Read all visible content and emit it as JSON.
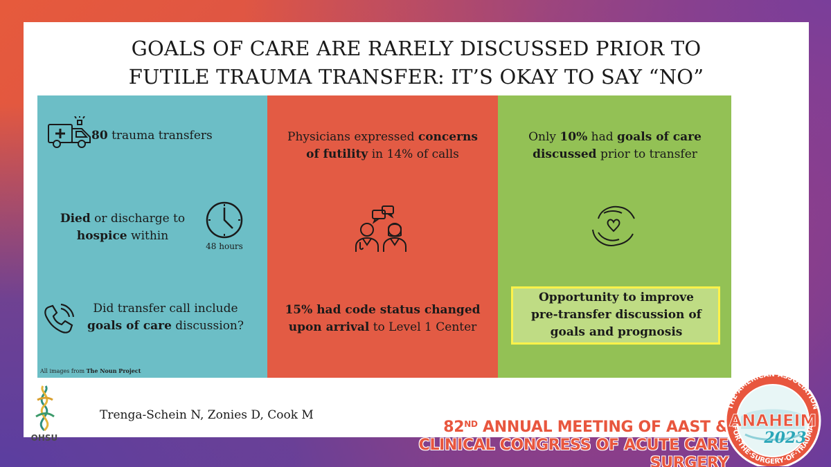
{
  "title": {
    "line1": "GOALS OF CARE ARE RARELY DISCUSSED PRIOR TO",
    "line2": "FUTILE TRAUMA TRANSFER: IT’S OKAY TO SAY “NO”"
  },
  "panel1": {
    "transfers_count": "80",
    "transfers_label": " trauma transfers",
    "died_bold": "Died",
    "died_rest": " or discharge to",
    "hospice_bold": "hospice",
    "hospice_rest": " within",
    "hours_label": "48 hours",
    "call_line1": "Did transfer call include",
    "call_goals_bold": "goals of care",
    "call_line2_rest": " discussion?",
    "credit_prefix": "All images from ",
    "credit_source": "The Noun Project"
  },
  "panel2": {
    "line1_plain": "Physicians expressed ",
    "line1_bold": "concerns",
    "line2_bold": "of futility",
    "line2_rest": " in 14% of calls",
    "code_pct": "15% had ",
    "code_bold1": "code status changed",
    "code_bold2": "upon arrival",
    "code_rest": " to Level 1 Center"
  },
  "panel3": {
    "line1_plain": "Only ",
    "line1_pct": "10%",
    "line1_mid": " had ",
    "line1_bold": "goals of care",
    "line2_bold": "discussed",
    "line2_rest": " prior to transfer",
    "opp_line1": "Opportunity to improve",
    "opp_line2": "pre-transfer discussion of",
    "opp_line3": "goals and prognosis"
  },
  "footer": {
    "authors": "Trenga-Schein N, Zonies D, Cook M",
    "ohsu": "OHSU",
    "meeting_num": "82",
    "meeting_sup": "ND",
    "meeting_line1_rest": " ANNUAL MEETING OF AAST &",
    "meeting_line2": "CLINICAL CONGRESS OF ACUTE CARE SURGERY"
  },
  "seal": {
    "ring_top": "THE·AMERICAN·ASSOCIATION",
    "ring_bottom": "FOR·THE·SURGERY·OF·TRAUMA",
    "city": "ANAHEIM",
    "year": "2023"
  },
  "icons": [
    "ambulance-icon",
    "clock-icon",
    "phone-icon",
    "doctors-icon",
    "chat-icon",
    "care-hands-icon",
    "ohsu-logo-icon"
  ],
  "colors": {
    "teal": "#6cbec6",
    "red": "#e35b44",
    "green": "#93c155",
    "highlight_border": "#fff24a",
    "meeting": "#e8563e"
  }
}
